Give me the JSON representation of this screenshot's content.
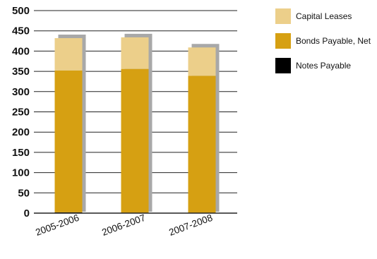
{
  "chart_data": {
    "type": "bar",
    "stacked": true,
    "categories": [
      "2005-2006",
      "2006-2007",
      "2007-2008"
    ],
    "series": [
      {
        "name": "Notes Payable",
        "values": [
          2,
          1,
          1
        ],
        "color": "#000000"
      },
      {
        "name": "Bonds Payable, Net",
        "values": [
          350,
          355,
          338
        ],
        "color": "#D6A012"
      },
      {
        "name": "Capital Leases",
        "values": [
          80,
          78,
          70
        ],
        "color": "#ECCF8A"
      }
    ],
    "ylim": [
      0,
      500
    ],
    "yticks": [
      0,
      50,
      100,
      150,
      200,
      250,
      300,
      350,
      400,
      450,
      500
    ],
    "grid": true,
    "legend": {
      "position": "right",
      "order": [
        "Capital Leases",
        "Bonds Payable, Net",
        "Notes Payable"
      ]
    },
    "bar_shadow_color": "#A8A8A8",
    "title": "",
    "xlabel": "",
    "ylabel": ""
  }
}
